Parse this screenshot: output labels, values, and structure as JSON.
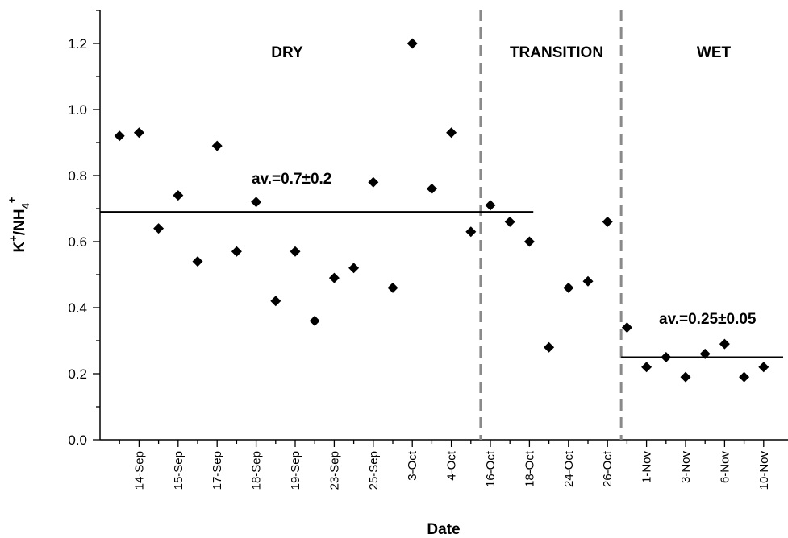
{
  "chart_data": {
    "type": "scatter",
    "xlabel": "Date",
    "ylabel": {
      "base": "K",
      "sup1": "+",
      "sep": "/NH",
      "sub": "4",
      "sup2": "+"
    },
    "ylim": [
      0,
      1.3
    ],
    "yticks": [
      "0.0",
      "0.2",
      "0.4",
      "0.6",
      "0.8",
      "1.0",
      "1.2"
    ],
    "grid": false,
    "n_slots": 34,
    "categories": [
      "14-Sep",
      "15-Sep",
      "17-Sep",
      "18-Sep",
      "19-Sep",
      "23-Sep",
      "25-Sep",
      "3-Oct",
      "4-Oct",
      "16-Oct",
      "18-Oct",
      "24-Oct",
      "26-Oct",
      "1-Nov",
      "3-Nov",
      "6-Nov",
      "10-Nov"
    ],
    "points": [
      {
        "slot": 1,
        "y": 0.92
      },
      {
        "slot": 2,
        "y": 0.93
      },
      {
        "slot": 3,
        "y": 0.64
      },
      {
        "slot": 4,
        "y": 0.74
      },
      {
        "slot": 5,
        "y": 0.54
      },
      {
        "slot": 6,
        "y": 0.89
      },
      {
        "slot": 7,
        "y": 0.57
      },
      {
        "slot": 8,
        "y": 0.72
      },
      {
        "slot": 9,
        "y": 0.42
      },
      {
        "slot": 10,
        "y": 0.57
      },
      {
        "slot": 11,
        "y": 0.36
      },
      {
        "slot": 12,
        "y": 0.49
      },
      {
        "slot": 13,
        "y": 0.52
      },
      {
        "slot": 14,
        "y": 0.78
      },
      {
        "slot": 15,
        "y": 0.46
      },
      {
        "slot": 16,
        "y": 1.2
      },
      {
        "slot": 17,
        "y": 0.76
      },
      {
        "slot": 18,
        "y": 0.93
      },
      {
        "slot": 19,
        "y": 0.63
      },
      {
        "slot": 20,
        "y": 0.71
      },
      {
        "slot": 21,
        "y": 0.66
      },
      {
        "slot": 22,
        "y": 0.6
      },
      {
        "slot": 23,
        "y": 0.28
      },
      {
        "slot": 24,
        "y": 0.46
      },
      {
        "slot": 25,
        "y": 0.48
      },
      {
        "slot": 26,
        "y": 0.66
      },
      {
        "slot": 27,
        "y": 0.34
      },
      {
        "slot": 28,
        "y": 0.22
      },
      {
        "slot": 29,
        "y": 0.25
      },
      {
        "slot": 30,
        "y": 0.19
      },
      {
        "slot": 31,
        "y": 0.26
      },
      {
        "slot": 32,
        "y": 0.29
      },
      {
        "slot": 33,
        "y": 0.19
      },
      {
        "slot": 34,
        "y": 0.22
      }
    ],
    "regions": [
      {
        "label": "DRY",
        "from": 0,
        "to": 19.5
      },
      {
        "label": "TRANSITION",
        "from": 19.5,
        "to": 26.7
      },
      {
        "label": "WET",
        "from": 26.7,
        "to": 35
      }
    ],
    "dividers": [
      19.5,
      26.7
    ],
    "averages": [
      {
        "label": "av.=0.7±0.2",
        "value": 0.69,
        "from": 0,
        "to": 22.2
      },
      {
        "label": "av.=0.25±0.05",
        "value": 0.25,
        "from": 26.7,
        "to": 35
      }
    ]
  }
}
